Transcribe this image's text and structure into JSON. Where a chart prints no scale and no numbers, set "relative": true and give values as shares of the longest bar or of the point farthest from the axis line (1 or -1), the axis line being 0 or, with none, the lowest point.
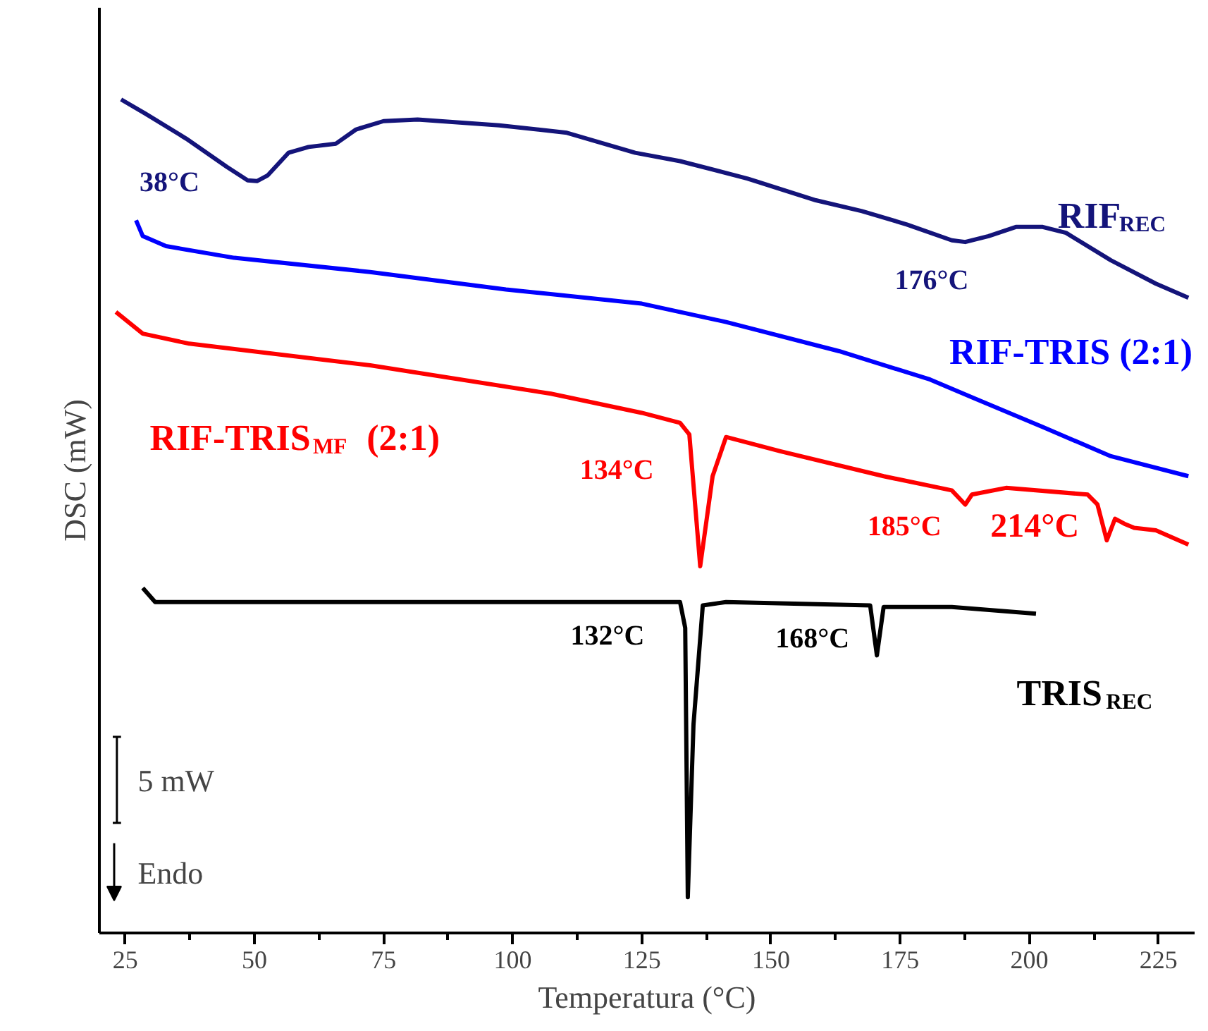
{
  "chart_data": {
    "type": "line",
    "relative": true,
    "xlabel": "Temperatura (°C)",
    "ylabel": "DSC (mW)",
    "xlim": [
      20,
      232
    ],
    "xticks": [
      25,
      50,
      75,
      100,
      125,
      150,
      175,
      200,
      225
    ],
    "tick_labels": "x",
    "grid": false,
    "legend": false,
    "series": [
      {
        "name": "RIF$_{REC}$",
        "color": "#14147a",
        "x": [
          24.2,
          28.9,
          36.8,
          44.7,
          48.7,
          50.5,
          52.6,
          56.6,
          60.5,
          65.8,
          69.7,
          75.0,
          81.6,
          97.4,
          110.5,
          123.7,
          132.4,
          145.5,
          158.7,
          167.6,
          176.3,
          185.0,
          187.6,
          192.1,
          197.4,
          202.6,
          207.1,
          215.8,
          224.5,
          230.8
        ],
        "values": [
          1.0,
          0.983,
          0.953,
          0.919,
          0.903,
          0.902,
          0.909,
          0.936,
          0.943,
          0.947,
          0.964,
          0.974,
          0.976,
          0.969,
          0.96,
          0.936,
          0.926,
          0.905,
          0.879,
          0.866,
          0.85,
          0.831,
          0.829,
          0.836,
          0.847,
          0.847,
          0.84,
          0.807,
          0.779,
          0.762
        ]
      },
      {
        "name": "RIF-TRIS (2:1)",
        "color": "#0000ff",
        "x": [
          27.1,
          28.4,
          32.9,
          46.1,
          72.4,
          98.7,
          125.0,
          141.3,
          163.2,
          180.8,
          189.5,
          202.6,
          215.8,
          230.8
        ],
        "values": [
          0.855,
          0.836,
          0.824,
          0.81,
          0.793,
          0.772,
          0.755,
          0.733,
          0.698,
          0.664,
          0.641,
          0.607,
          0.572,
          0.548
        ]
      },
      {
        "name": "RIF-TRIS$_{MF}$ (2:1)",
        "color": "#ff0000",
        "x": [
          23.2,
          28.4,
          37.4,
          72.4,
          107.4,
          125.0,
          132.4,
          134.2,
          136.3,
          138.7,
          141.3,
          151.8,
          171.8,
          185.0,
          187.6,
          188.9,
          195.5,
          211.3,
          213.2,
          215.0,
          216.6,
          218.4,
          220.3,
          224.5,
          230.8
        ],
        "values": [
          0.745,
          0.719,
          0.707,
          0.681,
          0.647,
          0.624,
          0.612,
          0.598,
          0.44,
          0.548,
          0.595,
          0.578,
          0.548,
          0.531,
          0.514,
          0.526,
          0.534,
          0.526,
          0.514,
          0.471,
          0.497,
          0.491,
          0.486,
          0.483,
          0.466
        ]
      },
      {
        "name": "TRIS$_{REC}$",
        "color": "#000000",
        "x": [
          28.4,
          30.8,
          63.7,
          123.7,
          132.4,
          133.4,
          133.9,
          135.0,
          136.8,
          141.3,
          169.2,
          170.5,
          171.8,
          185.0,
          201.3
        ],
        "values": [
          0.414,
          0.397,
          0.397,
          0.397,
          0.397,
          0.366,
          0.043,
          0.25,
          0.393,
          0.397,
          0.393,
          0.333,
          0.391,
          0.391,
          0.383
        ]
      }
    ],
    "annotations": [
      "38°C",
      "176°C",
      "134°C",
      "185°C",
      "214°C",
      "132°C",
      "168°C",
      "5 mW",
      "Endo"
    ]
  }
}
